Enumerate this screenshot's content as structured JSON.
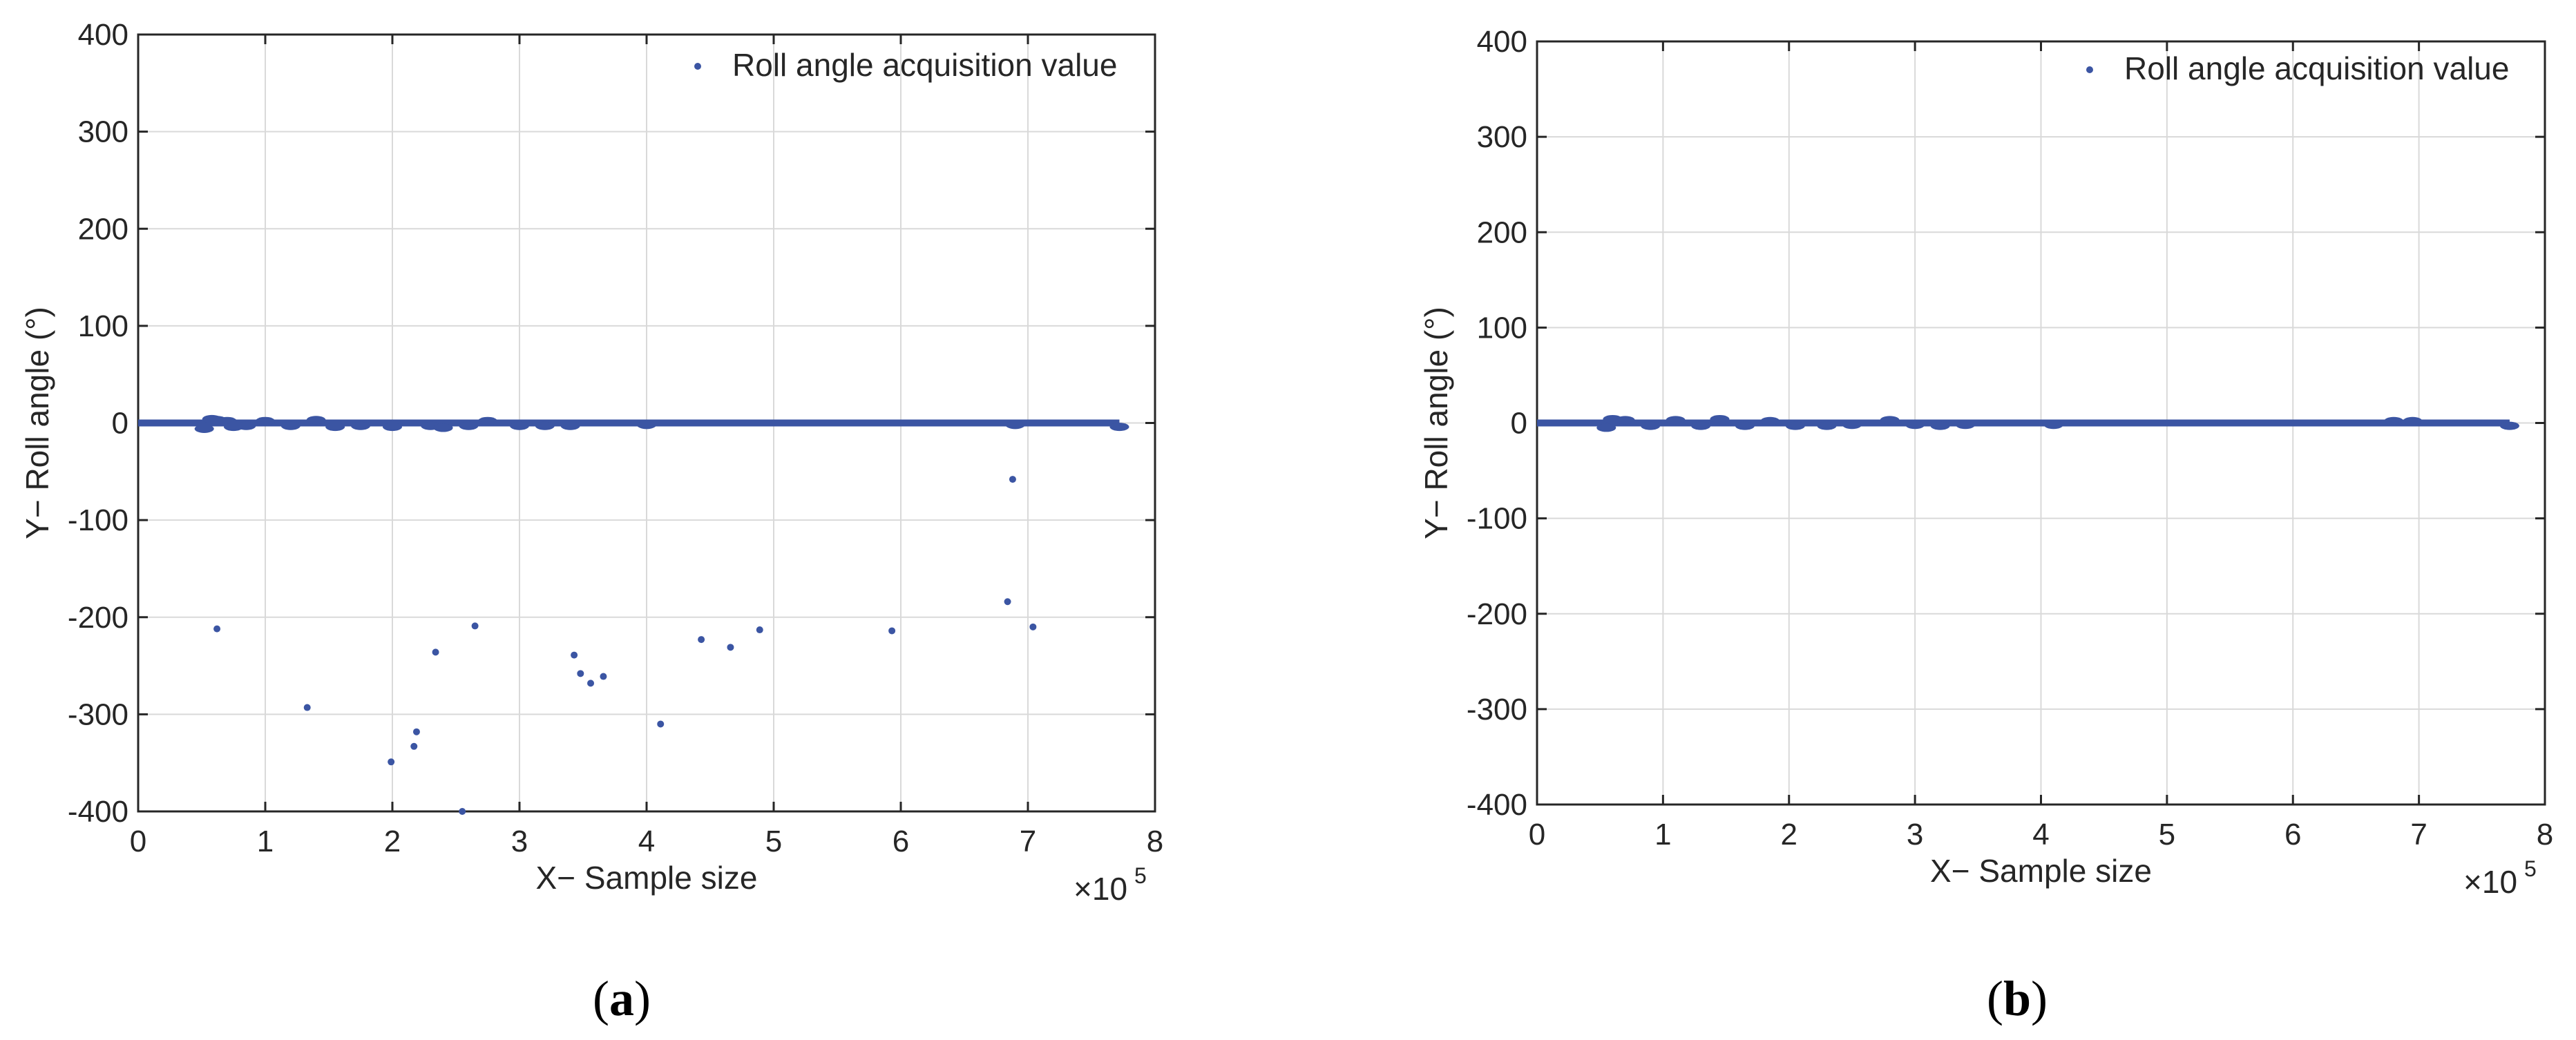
{
  "colors": {
    "series": "#3B55A3",
    "grid": "#D9D9D9",
    "axis": "#262626",
    "background": "#FFFFFF"
  },
  "chart_data": [
    {
      "type": "scatter",
      "panel_label": {
        "open": "(",
        "letter": "a",
        "close": ")"
      },
      "xlabel": "X− Sample size",
      "ylabel": "Y− Roll angle (°)",
      "x_exponent_label": {
        "base": "×10",
        "exp": "5"
      },
      "xlim": [
        0,
        8
      ],
      "ylim": [
        -400,
        400
      ],
      "x_ticks": [
        0,
        1,
        2,
        3,
        4,
        5,
        6,
        7,
        8
      ],
      "x_tick_labels": [
        "0",
        "1",
        "2",
        "3",
        "4",
        "5",
        "6",
        "7",
        "8"
      ],
      "y_ticks": [
        -400,
        -300,
        -200,
        -100,
        0,
        100,
        200,
        300,
        400
      ],
      "y_tick_labels": [
        "-400",
        "-300",
        "-200",
        "-100",
        "0",
        "100",
        "200",
        "300",
        "400"
      ],
      "grid": true,
      "legend": {
        "position": "top-right",
        "entries": [
          "Roll angle acquisition value"
        ]
      },
      "series": [
        {
          "name": "Roll angle acquisition value",
          "baseline": {
            "x_start": 0,
            "x_end": 7.72,
            "y": 0
          },
          "noise_bursts": [
            {
              "x": 0.52,
              "y": -6
            },
            {
              "x": 0.58,
              "y": 4
            },
            {
              "x": 0.62,
              "y": 3
            },
            {
              "x": 0.7,
              "y": 2
            },
            {
              "x": 0.75,
              "y": -4
            },
            {
              "x": 0.85,
              "y": -3
            },
            {
              "x": 1.0,
              "y": 2
            },
            {
              "x": 1.2,
              "y": -3
            },
            {
              "x": 1.4,
              "y": 3
            },
            {
              "x": 1.55,
              "y": -4
            },
            {
              "x": 1.75,
              "y": -3
            },
            {
              "x": 2.0,
              "y": -4
            },
            {
              "x": 2.3,
              "y": -3
            },
            {
              "x": 2.4,
              "y": -5
            },
            {
              "x": 2.6,
              "y": -3
            },
            {
              "x": 2.75,
              "y": 2
            },
            {
              "x": 3.0,
              "y": -3
            },
            {
              "x": 3.2,
              "y": -3
            },
            {
              "x": 3.4,
              "y": -3
            },
            {
              "x": 4.0,
              "y": -2
            },
            {
              "x": 6.9,
              "y": -2
            },
            {
              "x": 7.72,
              "y": -4
            }
          ],
          "points": [
            {
              "x": 0.62,
              "y": -212
            },
            {
              "x": 1.33,
              "y": -293
            },
            {
              "x": 1.99,
              "y": -349
            },
            {
              "x": 2.17,
              "y": -333
            },
            {
              "x": 2.19,
              "y": -318
            },
            {
              "x": 2.34,
              "y": -236
            },
            {
              "x": 2.55,
              "y": -400
            },
            {
              "x": 2.65,
              "y": -209
            },
            {
              "x": 3.43,
              "y": -239
            },
            {
              "x": 3.48,
              "y": -258
            },
            {
              "x": 3.56,
              "y": -268
            },
            {
              "x": 3.66,
              "y": -261
            },
            {
              "x": 4.11,
              "y": -310
            },
            {
              "x": 4.43,
              "y": -223
            },
            {
              "x": 4.66,
              "y": -231
            },
            {
              "x": 4.89,
              "y": -213
            },
            {
              "x": 5.93,
              "y": -214
            },
            {
              "x": 6.84,
              "y": -184
            },
            {
              "x": 6.88,
              "y": -58
            },
            {
              "x": 7.04,
              "y": -210
            }
          ]
        }
      ]
    },
    {
      "type": "scatter",
      "panel_label": {
        "open": "(",
        "letter": "b",
        "close": ")"
      },
      "xlabel": "X− Sample size",
      "ylabel": "Y− Roll angle (°)",
      "x_exponent_label": {
        "base": "×10",
        "exp": "5"
      },
      "xlim": [
        0,
        8
      ],
      "ylim": [
        -400,
        400
      ],
      "x_ticks": [
        0,
        1,
        2,
        3,
        4,
        5,
        6,
        7,
        8
      ],
      "x_tick_labels": [
        "0",
        "1",
        "2",
        "3",
        "4",
        "5",
        "6",
        "7",
        "8"
      ],
      "y_ticks": [
        -400,
        -300,
        -200,
        -100,
        0,
        100,
        200,
        300,
        400
      ],
      "y_tick_labels": [
        "-400",
        "-300",
        "-200",
        "-100",
        "0",
        "100",
        "200",
        "300",
        "400"
      ],
      "grid": true,
      "legend": {
        "position": "top-right",
        "entries": [
          "Roll angle acquisition value"
        ]
      },
      "series": [
        {
          "name": "Roll angle acquisition value",
          "baseline": {
            "x_start": 0,
            "x_end": 7.72,
            "y": 0
          },
          "noise_bursts": [
            {
              "x": 0.55,
              "y": -5
            },
            {
              "x": 0.6,
              "y": 4
            },
            {
              "x": 0.7,
              "y": 3
            },
            {
              "x": 0.9,
              "y": -3
            },
            {
              "x": 1.1,
              "y": 3
            },
            {
              "x": 1.3,
              "y": -3
            },
            {
              "x": 1.45,
              "y": 4
            },
            {
              "x": 1.65,
              "y": -3
            },
            {
              "x": 1.85,
              "y": 2
            },
            {
              "x": 2.05,
              "y": -3
            },
            {
              "x": 2.3,
              "y": -3
            },
            {
              "x": 2.5,
              "y": -2
            },
            {
              "x": 2.8,
              "y": 3
            },
            {
              "x": 3.0,
              "y": -2
            },
            {
              "x": 3.2,
              "y": -3
            },
            {
              "x": 3.4,
              "y": -2
            },
            {
              "x": 4.1,
              "y": -2
            },
            {
              "x": 6.8,
              "y": 2
            },
            {
              "x": 6.95,
              "y": 2
            },
            {
              "x": 7.72,
              "y": -3
            }
          ],
          "points": []
        }
      ]
    }
  ]
}
